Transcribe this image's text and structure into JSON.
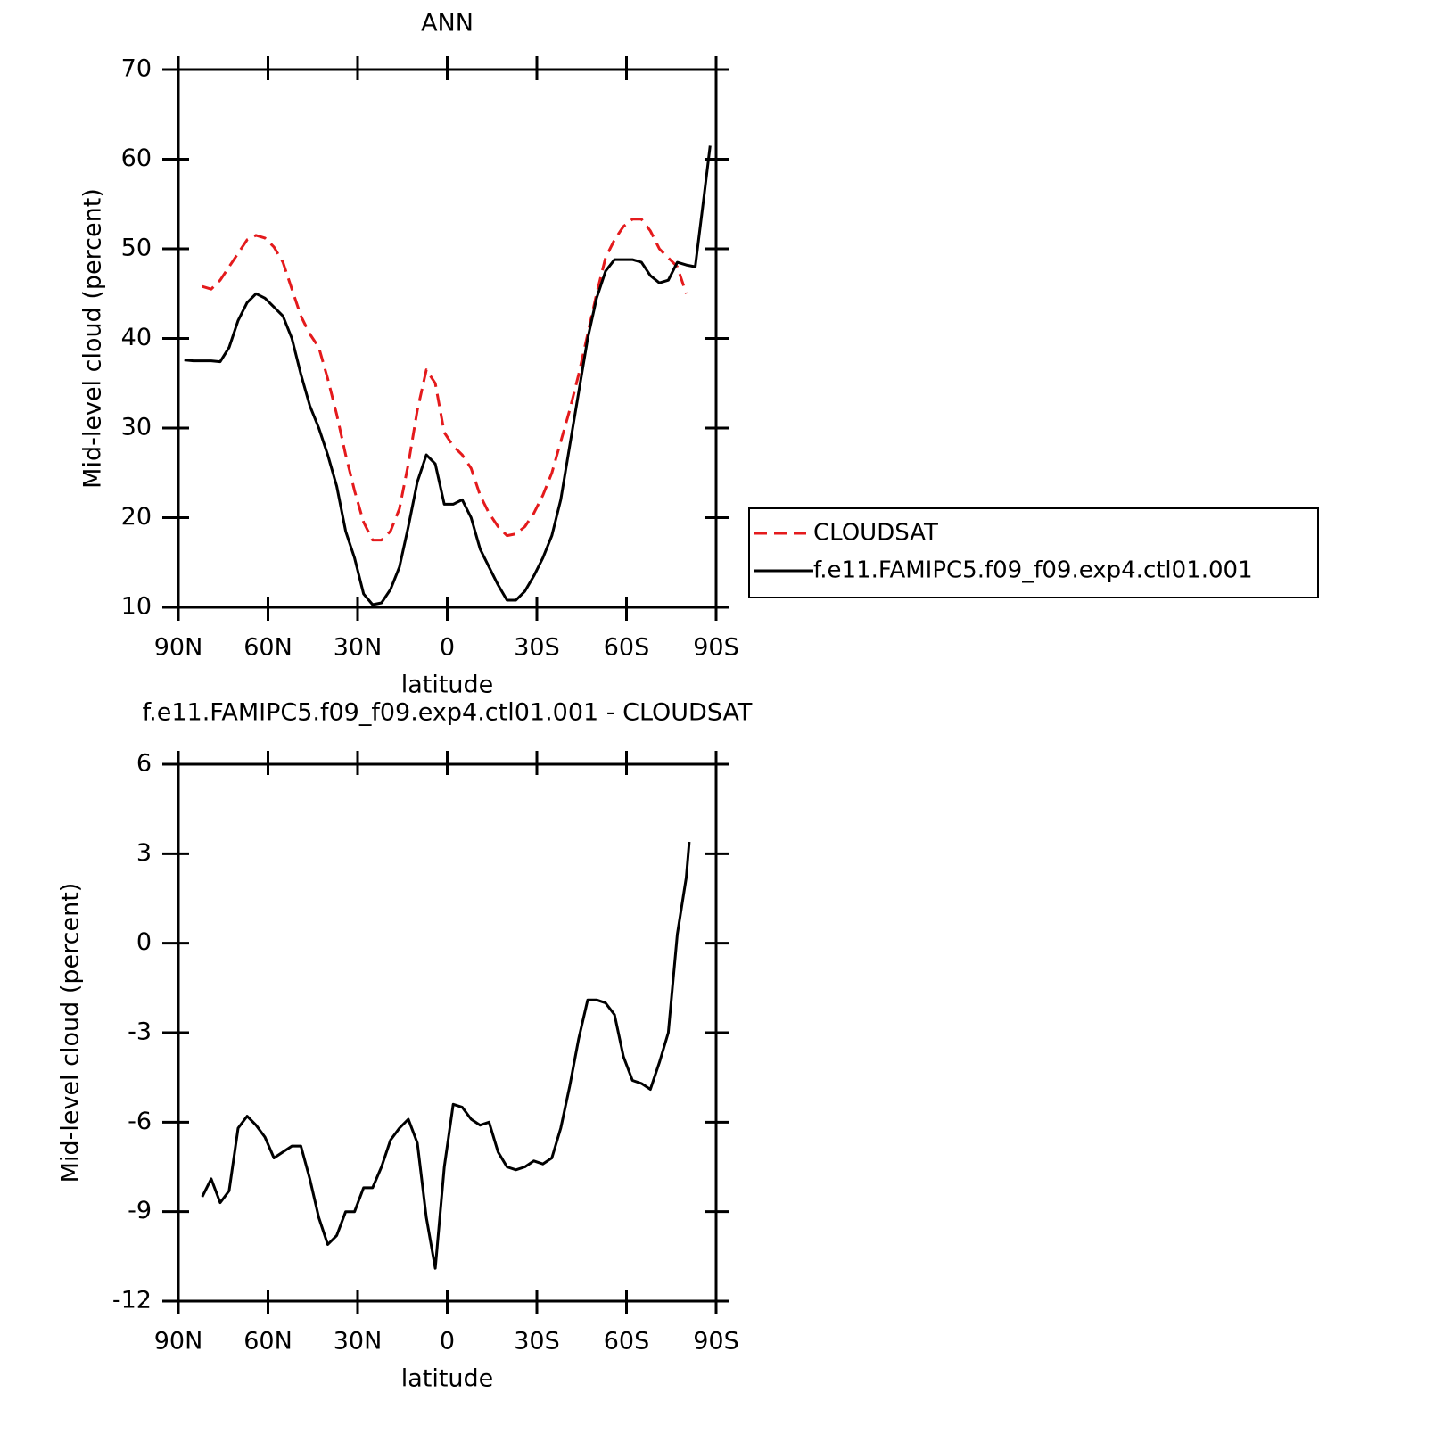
{
  "chart_data": [
    {
      "type": "line",
      "title": "ANN",
      "xlabel": "latitude",
      "ylabel": "Mid-level cloud (percent)",
      "x": [
        88,
        85,
        82,
        79,
        76,
        73,
        70,
        67,
        64,
        61,
        58,
        55,
        52,
        49,
        46,
        43,
        40,
        37,
        34,
        31,
        28,
        25,
        22,
        19,
        16,
        13,
        10,
        7,
        4,
        1,
        -2,
        -5,
        -8,
        -11,
        -14,
        -17,
        -20,
        -23,
        -26,
        -29,
        -32,
        -35,
        -38,
        -41,
        -44,
        -47,
        -50,
        -53,
        -56,
        -59,
        -62,
        -65,
        -68,
        -71,
        -74,
        -77,
        -80,
        -83,
        -86,
        -88
      ],
      "series": [
        {
          "name": "CLOUDSAT",
          "color": "#e41a1c",
          "dashed": true,
          "values": [
            null,
            null,
            45.8,
            45.5,
            46.5,
            48,
            49.5,
            51,
            51.5,
            51.2,
            50.2,
            48.5,
            45.5,
            42.5,
            40.5,
            39,
            35.5,
            31.5,
            27,
            23,
            19.5,
            17.5,
            17.5,
            18.5,
            21,
            26,
            32,
            36.5,
            35,
            29.5,
            28,
            27,
            25.5,
            22.5,
            20.5,
            19,
            18,
            18.2,
            19,
            20.5,
            22.5,
            25,
            28.5,
            32,
            36,
            40.5,
            45,
            49,
            51,
            52.5,
            53.3,
            53.3,
            52,
            50,
            49,
            48,
            45,
            null,
            null,
            null
          ]
        },
        {
          "name": "f.e11.FAMIPC5.f09_f09.exp4.ctl01.001",
          "color": "#000000",
          "dashed": false,
          "values": [
            37.6,
            37.5,
            37.5,
            37.5,
            37.4,
            39,
            42,
            44,
            45,
            44.5,
            43.5,
            42.5,
            40,
            36,
            32.5,
            30,
            27,
            23.5,
            18.5,
            15.5,
            11.5,
            10.3,
            10.5,
            12,
            14.5,
            19,
            24,
            27,
            26,
            21.5,
            21.5,
            22,
            20,
            16.5,
            14.5,
            12.5,
            10.8,
            10.8,
            11.8,
            13.5,
            15.5,
            18,
            22,
            28,
            34,
            40,
            44.5,
            47.5,
            48.8,
            48.8,
            48.8,
            48.5,
            47,
            46.2,
            46.5,
            48.5,
            48.2,
            48,
            56,
            61.5
          ]
        }
      ],
      "xlim": [
        90,
        -90
      ],
      "xticks": [
        {
          "value": 90,
          "label": "90N"
        },
        {
          "value": 60,
          "label": "60N"
        },
        {
          "value": 30,
          "label": "30N"
        },
        0,
        {
          "value": -30,
          "label": "30S"
        },
        {
          "value": -60,
          "label": "60S"
        },
        {
          "value": -90,
          "label": "90S"
        }
      ],
      "ylim": [
        10,
        70
      ],
      "yticks": [
        10,
        20,
        30,
        40,
        50,
        60,
        70
      ],
      "legend": "outside-right"
    },
    {
      "type": "line",
      "title": "f.e11.FAMIPC5.f09_f09.exp4.ctl01.001 - CLOUDSAT",
      "xlabel": "latitude",
      "ylabel": "Mid-level cloud (percent)",
      "x": [
        82,
        79,
        76,
        73,
        70,
        67,
        64,
        61,
        58,
        55,
        52,
        49,
        46,
        43,
        40,
        37,
        34,
        31,
        28,
        25,
        22,
        19,
        16,
        13,
        10,
        7,
        4,
        1,
        -2,
        -5,
        -8,
        -11,
        -14,
        -17,
        -20,
        -23,
        -26,
        -29,
        -32,
        -35,
        -38,
        -41,
        -44,
        -47,
        -50,
        -53,
        -56,
        -59,
        -62,
        -65,
        -68,
        -71,
        -74,
        -77,
        -80,
        -81
      ],
      "series": [
        {
          "name": "f.e11.FAMIPC5.f09_f09.exp4.ctl01.001 - CLOUDSAT",
          "color": "#000000",
          "dashed": false,
          "values": [
            -8.5,
            -7.9,
            -8.7,
            -8.3,
            -6.2,
            -5.8,
            -6.1,
            -6.5,
            -7.2,
            -7.0,
            -6.8,
            -6.8,
            -7.9,
            -9.2,
            -10.1,
            -9.8,
            -9.0,
            -9.0,
            -8.2,
            -8.2,
            -7.5,
            -6.6,
            -6.2,
            -5.9,
            -6.7,
            -9.2,
            -10.9,
            -7.5,
            -5.4,
            -5.5,
            -5.9,
            -6.1,
            -6.0,
            -7.0,
            -7.5,
            -7.6,
            -7.5,
            -7.3,
            -7.4,
            -7.2,
            -6.2,
            -4.8,
            -3.2,
            -1.9,
            -1.9,
            -2.0,
            -2.4,
            -3.8,
            -4.6,
            -4.7,
            -4.9,
            -4.0,
            -3.0,
            0.3,
            2.2,
            3.4
          ]
        }
      ],
      "xlim": [
        90,
        -90
      ],
      "xticks": [
        {
          "value": 90,
          "label": "90N"
        },
        {
          "value": 60,
          "label": "60N"
        },
        {
          "value": 30,
          "label": "30N"
        },
        0,
        {
          "value": -30,
          "label": "30S"
        },
        {
          "value": -60,
          "label": "60S"
        },
        {
          "value": -90,
          "label": "90S"
        }
      ],
      "ylim": [
        -12,
        6
      ],
      "yticks": [
        -12,
        -9,
        -6,
        -3,
        0,
        3,
        6
      ]
    }
  ]
}
